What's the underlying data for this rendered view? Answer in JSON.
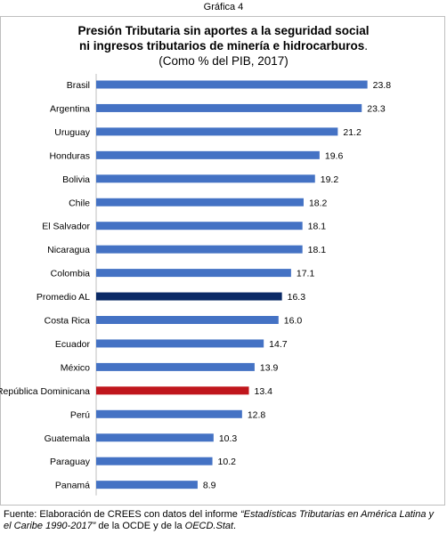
{
  "figure_label": "Gráfica 4",
  "title": {
    "line1": "Presión Tributaria sin aportes a la seguridad social",
    "line2": "ni ingresos tributarios de minería e hidrocarburos",
    "line2_end": ".",
    "line3": "(Como % del PIB, 2017)"
  },
  "footnote": {
    "prefix": "Fuente: Elaboración de CREES con datos del informe ",
    "italic_part": "“Estadísticas Tributarias en América Latina y el Caribe 1990-2017”",
    "middle": " de la OCDE y de la ",
    "italic_source": "OECD.Stat",
    "suffix": "."
  },
  "colors": {
    "default_bar": "#4472c4",
    "average_bar": "#0b2a66",
    "highlight_bar": "#c0161c"
  },
  "chart_data": {
    "type": "bar",
    "orientation": "horizontal",
    "title": "Presión Tributaria sin aportes a la seguridad social ni ingresos tributarios de minería e hidrocarburos. (Como % del PIB, 2017)",
    "categories": [
      "Brasil",
      "Argentina",
      "Uruguay",
      "Honduras",
      "Bolivia",
      "Chile",
      "El Salvador",
      "Nicaragua",
      "Colombia",
      "Promedio AL",
      "Costa Rica",
      "Ecuador",
      "México",
      "República Dominicana",
      "Perú",
      "Guatemala",
      "Paraguay",
      "Panamá"
    ],
    "values": [
      23.8,
      23.3,
      21.2,
      19.6,
      19.2,
      18.2,
      18.1,
      18.1,
      17.1,
      16.3,
      16.0,
      14.7,
      13.9,
      13.4,
      12.8,
      10.3,
      10.2,
      8.9
    ],
    "value_labels": [
      "23.8",
      "23.3",
      "21.2",
      "19.6",
      "19.2",
      "18.2",
      "18.1",
      "18.1",
      "17.1",
      "16.3",
      "16.0",
      "14.7",
      "13.9",
      "13.4",
      "12.8",
      "10.3",
      "10.2",
      "8.9"
    ],
    "highlights": {
      "Promedio AL": "average",
      "República Dominicana": "highlight"
    },
    "xlim": [
      0,
      25
    ],
    "grid": false,
    "legend": "none"
  }
}
